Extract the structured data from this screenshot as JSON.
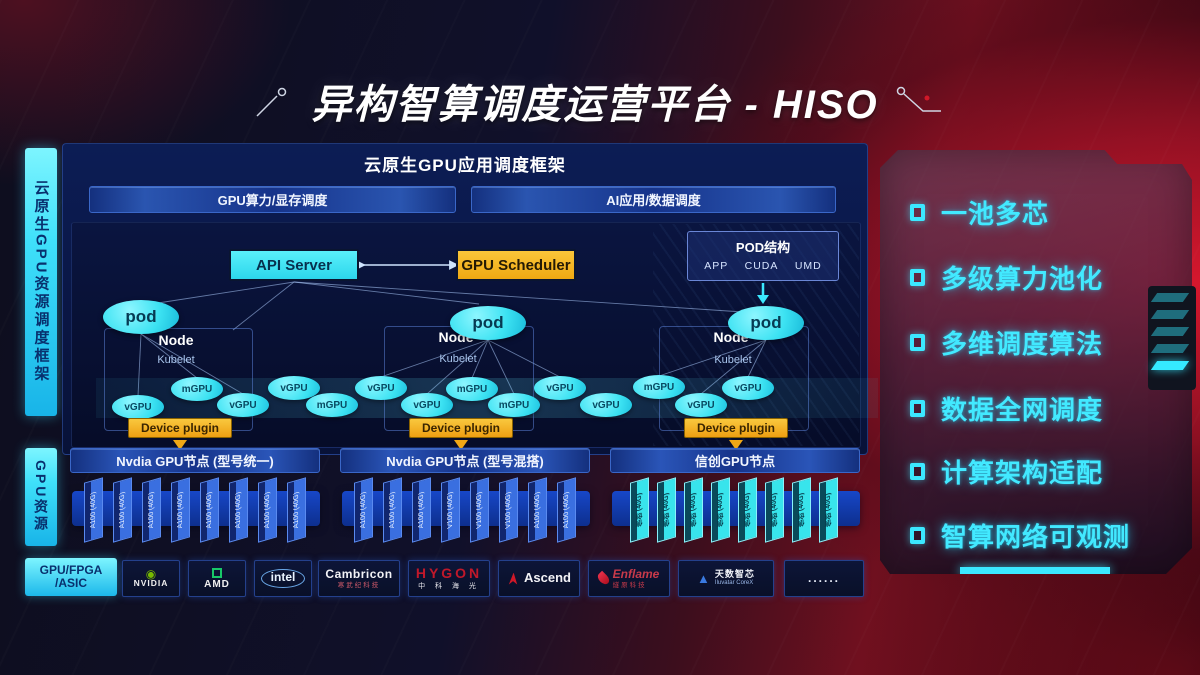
{
  "colors": {
    "accent_cyan": "#3BE8FF",
    "accent_orange": "#F5B41C",
    "accent_red": "#C01228",
    "nvidia_green": "#76B900"
  },
  "title": {
    "text": "异构智算调度运营平台 - HISO"
  },
  "sidebar": {
    "framework_label": "云原生GPU资源调度框架",
    "resource_label": "GPU资源",
    "hardware_label_line1": "GPU/FPGA",
    "hardware_label_line2": "/ASIC"
  },
  "framework": {
    "title": "云原生GPU应用调度框架",
    "left_bar": "GPU算力/显存调度",
    "right_bar": "AI应用/数据调度"
  },
  "control": {
    "api_server": "API Server",
    "gpu_scheduler": "GPU Scheduler"
  },
  "pod_structure": {
    "title": "POD结构",
    "items": [
      "APP",
      "CUDA",
      "UMD"
    ]
  },
  "nodes": [
    {
      "pod": "pod",
      "name": "Node",
      "agent": "Kubelet",
      "plugin": "Device plugin"
    },
    {
      "pod": "pod",
      "name": "Node",
      "agent": "Kubelet",
      "plugin": "Device plugin"
    },
    {
      "pod": "pod",
      "name": "Node",
      "agent": "Kubelet",
      "plugin": "Device plugin"
    }
  ],
  "gpu_ellipses": [
    "vGPU",
    "mGPU",
    "vGPU",
    "vGPU",
    "mGPU",
    "vGPU",
    "vGPU",
    "mGPU",
    "mGPU",
    "vGPU",
    "vGPU",
    "mGPU",
    "vGPU",
    "vGPU"
  ],
  "gpu_groups": [
    {
      "title": "Nvdia GPU节点 (型号统一)",
      "cards": [
        "A100 (40G)",
        "A100 (40G)",
        "A100 (40G)",
        "A100 (40G)",
        "A100 (40G)",
        "A100 (40G)",
        "A100 (40G)",
        "A100 (40G)"
      ]
    },
    {
      "title": "Nvdia GPU节点 (型号混搭)",
      "cards": [
        "A100 (40G)",
        "A100 (40G)",
        "A100 (40G)",
        "V100 (40G)",
        "V100 (40G)",
        "V100 (40G)",
        "A100 (40G)",
        "A100 (40G)"
      ]
    },
    {
      "title": "信创GPU节点",
      "cards": [
        "信创 (40G)",
        "信创 (40G)",
        "信创 (40G)",
        "信创 (40G)",
        "信创 (40G)",
        "信创 (40G)",
        "信创 (40G)",
        "信创 (40G)"
      ]
    }
  ],
  "features": [
    "一池多芯",
    "多级算力池化",
    "多维调度算法",
    "数据全网调度",
    "计算架构适配",
    "智算网络可观测"
  ],
  "vendors": {
    "nvidia": {
      "name": "NVIDIA"
    },
    "amd": {
      "name": "AMD"
    },
    "intel": {
      "name": "intel"
    },
    "cambricon": {
      "name": "Cambricon",
      "sub": "寒武纪科技"
    },
    "hygon": {
      "name": "HYGON",
      "sub": "中 科 海 光"
    },
    "ascend": {
      "name": "Ascend"
    },
    "enflame": {
      "name": "Enflame",
      "sub": "燧原科技"
    },
    "iluvatar": {
      "name": "天数智芯",
      "sub": "Iluvatar CoreX"
    },
    "more": "......"
  }
}
